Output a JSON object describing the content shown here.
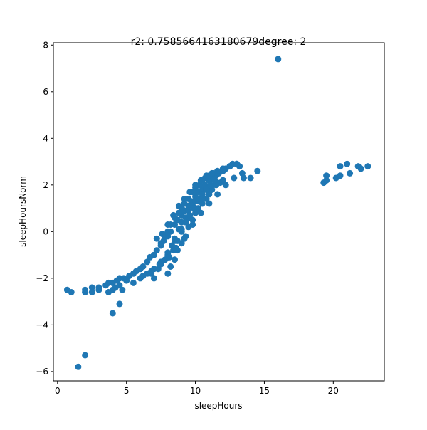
{
  "chart_data": {
    "type": "scatter",
    "title": "r2: 0.7585664163180679degree: 2",
    "xlabel": "sleepHours",
    "ylabel": "sleepHoursNorm",
    "xlim": [
      -0.3,
      23.7
    ],
    "ylim": [
      -6.4,
      8.1
    ],
    "xticks": [
      0,
      5,
      10,
      15,
      20
    ],
    "yticks": [
      -6,
      -4,
      -2,
      0,
      2,
      4,
      6,
      8
    ],
    "grid": false,
    "legend": "none",
    "marker_color": "#1f77b4",
    "x": [
      0.7,
      1.0,
      2.0,
      2.0,
      2.5,
      2.5,
      3.0,
      3.0,
      3.5,
      3.7,
      3.7,
      4.0,
      4.0,
      4.2,
      4.3,
      4.5,
      4.5,
      4.7,
      4.8,
      5.0,
      5.2,
      5.5,
      5.7,
      6.0,
      6.2,
      6.5,
      6.7,
      7.0,
      7.2,
      7.5,
      7.7,
      8.0,
      8.2,
      8.5,
      8.7,
      9.0,
      9.2,
      9.5,
      9.7,
      10.0,
      10.2,
      10.5,
      10.7,
      11.0,
      11.2,
      11.5,
      11.7,
      12.0,
      12.2,
      12.5,
      12.7,
      13.0,
      13.2,
      13.5,
      14.0,
      14.5,
      6.8,
      7.0,
      7.3,
      7.5,
      7.8,
      8.0,
      8.3,
      8.5,
      8.8,
      9.0,
      9.3,
      9.5,
      9.8,
      10.0,
      10.3,
      10.5,
      10.8,
      11.0,
      7.5,
      7.8,
      8.0,
      8.2,
      8.5,
      8.8,
      9.0,
      9.2,
      9.5,
      9.8,
      10.0,
      10.3,
      10.5,
      10.7,
      11.0,
      11.3,
      8.0,
      8.2,
      8.5,
      8.7,
      9.0,
      9.3,
      9.5,
      9.8,
      10.0,
      10.2,
      10.5,
      10.8,
      11.0,
      11.2,
      11.5,
      11.8,
      12.0,
      7.2,
      7.6,
      8.0,
      8.4,
      8.8,
      9.2,
      9.6,
      10.0,
      10.4,
      10.8,
      11.2,
      11.6,
      12.0,
      12.5,
      13.0,
      5.5,
      6.0,
      6.5,
      7.0,
      7.5,
      8.0,
      8.5,
      9.0,
      9.5,
      10.0,
      10.5,
      11.0,
      11.5,
      12.0,
      6.2,
      6.8,
      7.4,
      8.0,
      8.6,
      9.2,
      9.8,
      10.4,
      11.0,
      11.6,
      12.2,
      12.8,
      13.4,
      8.1,
      8.4,
      8.7,
      9.0,
      9.3,
      9.6,
      9.9,
      10.2,
      10.5,
      10.8,
      11.1,
      11.4,
      1.5,
      2.0,
      4.0,
      4.5,
      16.0,
      19.3,
      19.5,
      19.5,
      20.2,
      20.5,
      20.5,
      21.0,
      21.2,
      21.8,
      22.0,
      22.5
    ],
    "y": [
      -2.5,
      -2.6,
      -2.5,
      -2.6,
      -2.4,
      -2.6,
      -2.5,
      -2.4,
      -2.3,
      -2.2,
      -2.6,
      -2.5,
      -2.2,
      -2.4,
      -2.1,
      -2.3,
      -2.0,
      -2.5,
      -2.0,
      -2.1,
      -1.9,
      -1.8,
      -1.7,
      -1.6,
      -1.5,
      -1.3,
      -1.1,
      -1.0,
      -0.8,
      -0.6,
      -0.4,
      -0.2,
      0.0,
      0.3,
      0.5,
      0.7,
      0.9,
      1.1,
      1.3,
      1.5,
      1.7,
      1.8,
      2.0,
      2.2,
      2.3,
      2.4,
      2.5,
      2.6,
      2.7,
      2.8,
      2.9,
      2.9,
      2.8,
      2.3,
      2.3,
      2.6,
      -1.8,
      -2.0,
      -1.6,
      -1.4,
      -1.2,
      -1.0,
      -0.6,
      -0.3,
      0.1,
      0.4,
      0.6,
      0.9,
      1.1,
      1.3,
      1.4,
      1.6,
      1.8,
      1.9,
      -0.5,
      -0.2,
      0.0,
      0.3,
      0.6,
      0.8,
      1.0,
      1.2,
      1.4,
      1.7,
      1.9,
      2.0,
      2.2,
      2.3,
      2.4,
      2.5,
      -1.8,
      -1.5,
      -1.2,
      -0.8,
      -0.5,
      -0.2,
      0.2,
      0.5,
      0.8,
      1.0,
      1.2,
      1.4,
      1.6,
      1.8,
      2.0,
      2.1,
      2.2,
      -0.3,
      -0.1,
      0.3,
      0.7,
      1.1,
      1.4,
      1.7,
      2.0,
      2.2,
      2.4,
      2.5,
      2.6,
      2.7,
      2.8,
      2.9,
      -2.2,
      -2.0,
      -1.8,
      -1.6,
      -1.3,
      -0.9,
      -0.4,
      0.1,
      0.6,
      1.0,
      1.4,
      1.7,
      2.0,
      2.2,
      -1.9,
      -1.7,
      -1.4,
      -1.1,
      -0.7,
      -0.3,
      0.3,
      0.8,
      1.2,
      1.6,
      2.0,
      2.3,
      2.5,
      -1.1,
      -0.8,
      -0.4,
      0.0,
      0.4,
      0.7,
      1.0,
      1.3,
      1.6,
      1.8,
      2.0,
      2.2,
      -5.8,
      -5.3,
      -3.5,
      -3.1,
      7.4,
      2.1,
      2.2,
      2.4,
      2.3,
      2.4,
      2.8,
      2.9,
      2.5,
      2.8,
      2.7,
      2.8
    ]
  }
}
